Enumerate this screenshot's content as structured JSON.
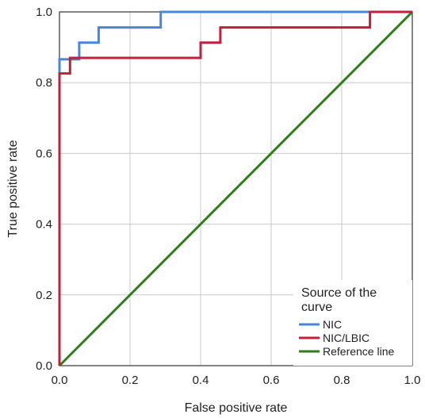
{
  "chart_data": {
    "type": "line",
    "xlabel": "False positive rate",
    "ylabel": "True positive rate",
    "xlim": [
      0,
      1
    ],
    "ylim": [
      0,
      1
    ],
    "xticks": [
      "0.0",
      "0.2",
      "0.4",
      "0.6",
      "0.8",
      "1.0"
    ],
    "yticks": [
      "0.0",
      "0.2",
      "0.4",
      "0.6",
      "0.8",
      "1.0"
    ],
    "grid": true,
    "legend": {
      "title": "Source of the curve",
      "position": "bottom-right"
    },
    "series": [
      {
        "name": "NIC",
        "color": "#4a86d8",
        "x": [
          0,
          0,
          0.056,
          0.056,
          0.111,
          0.111,
          0.287,
          0.287,
          1.0
        ],
        "y": [
          0,
          0.866,
          0.866,
          0.913,
          0.913,
          0.956,
          0.956,
          1.0,
          1.0
        ]
      },
      {
        "name": "NIC/LBIC",
        "color": "#c0203a",
        "x": [
          0,
          0,
          0.03,
          0.03,
          0.4,
          0.4,
          0.456,
          0.456,
          0.88,
          0.88,
          1.0
        ],
        "y": [
          0,
          0.826,
          0.826,
          0.87,
          0.87,
          0.913,
          0.913,
          0.956,
          0.956,
          1.0,
          1.0
        ]
      },
      {
        "name": "Reference line",
        "color": "#2e7d1a",
        "x": [
          0,
          1
        ],
        "y": [
          0,
          1
        ]
      }
    ]
  }
}
